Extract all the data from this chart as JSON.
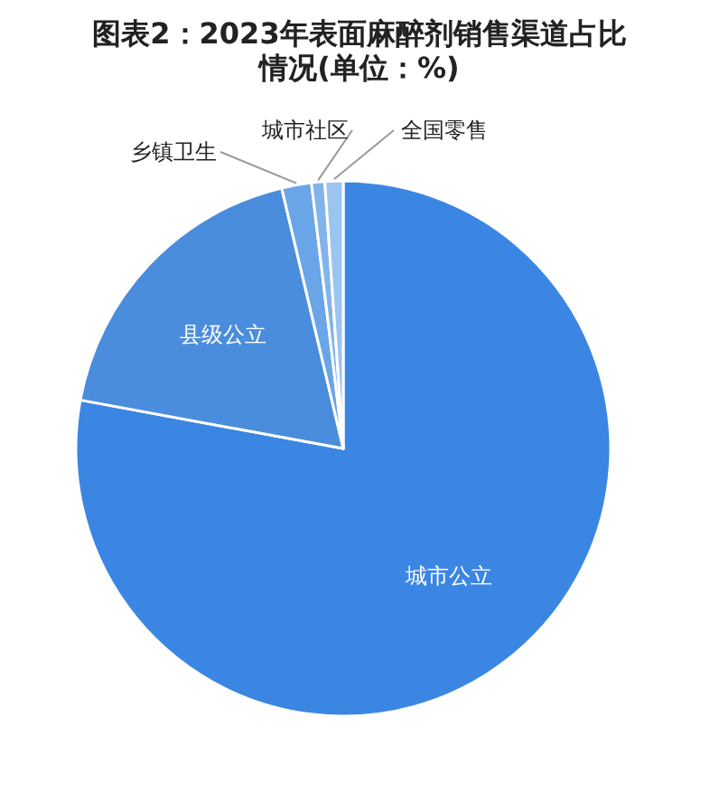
{
  "chart_data": {
    "type": "pie",
    "title": "图表2：2023年表面麻醉剂销售渠道占比情况(单位：%)",
    "categories": [
      "城市公立",
      "县级公立",
      "乡镇卫生",
      "城市社区",
      "全国零售"
    ],
    "values": [
      77.9,
      18.4,
      1.8,
      0.8,
      1.1
    ],
    "colors": [
      "#3b86e2",
      "#4a8ddc",
      "#6aa5e8",
      "#82b4ec",
      "#9cc4f0"
    ]
  }
}
